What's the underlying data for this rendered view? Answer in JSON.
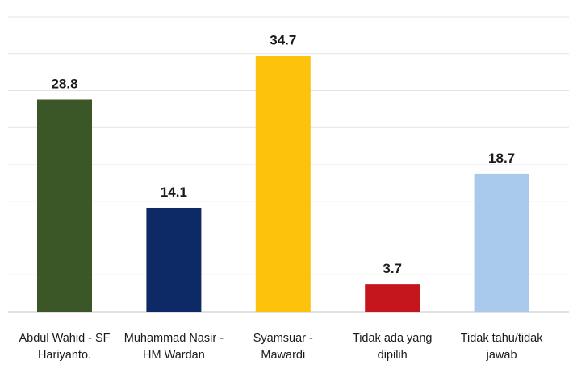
{
  "chart_data": {
    "type": "bar",
    "title": "",
    "xlabel": "",
    "ylabel": "",
    "ylim": [
      0,
      40
    ],
    "grid": true,
    "legend": "none",
    "categories": [
      [
        "Abdul Wahid - SF",
        "Hariyanto."
      ],
      [
        "Muhammad Nasir -",
        "HM Wardan"
      ],
      [
        "Syamsuar -",
        "Mawardi"
      ],
      [
        "Tidak ada yang",
        "dipilih"
      ],
      [
        "Tidak tahu/tidak",
        "jawab"
      ]
    ],
    "values": [
      28.8,
      14.1,
      34.7,
      3.7,
      18.7
    ],
    "value_labels": [
      "28.8",
      "14.1",
      "34.7",
      "3.7",
      "18.7"
    ],
    "colors": [
      "#3b5728",
      "#0d2a67",
      "#fdc20c",
      "#c4161c",
      "#a8c8ec"
    ]
  }
}
